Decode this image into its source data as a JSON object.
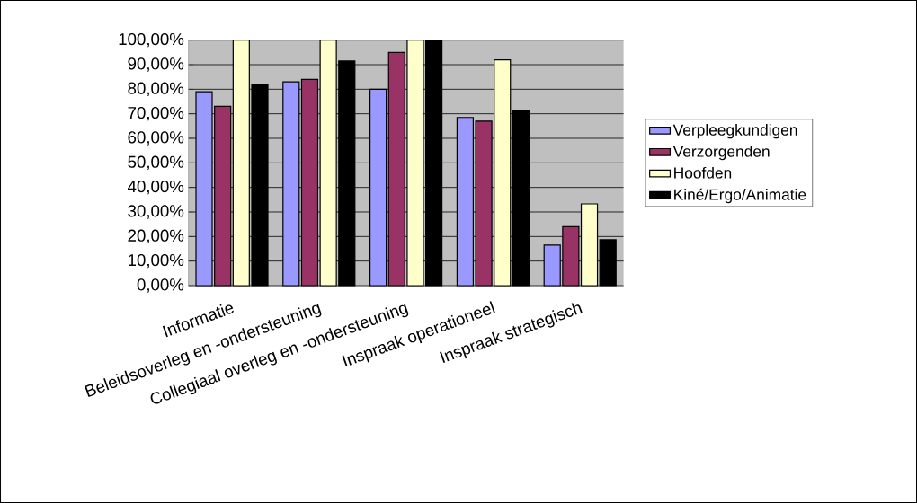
{
  "chart_data": {
    "type": "bar",
    "categories": [
      "Informatie",
      "Beleidsoverleg en -ondersteuning",
      "Collegiaal overleg en -ondersteuning",
      "Inspraak operationeel",
      "Inspraak strategisch"
    ],
    "series": [
      {
        "name": "Verpleegkundigen",
        "color": "#9999ff",
        "values": [
          79,
          83,
          80,
          68.5,
          16.5
        ]
      },
      {
        "name": "Verzorgenden",
        "color": "#993366",
        "values": [
          73,
          84,
          95,
          67,
          24
        ]
      },
      {
        "name": "Hoofden",
        "color": "#ffffcc",
        "values": [
          100,
          100,
          100,
          92,
          33.3
        ]
      },
      {
        "name": "Kiné/Ergo/Animatie",
        "color": "#000000",
        "values": [
          82,
          91.5,
          100,
          71.5,
          18.7
        ]
      }
    ],
    "ylim": [
      0,
      100
    ],
    "yticks": [
      {
        "value": 0,
        "label": "0,00%"
      },
      {
        "value": 10,
        "label": "10,00%"
      },
      {
        "value": 20,
        "label": "20,00%"
      },
      {
        "value": 30,
        "label": "30,00%"
      },
      {
        "value": 40,
        "label": "40,00%"
      },
      {
        "value": 50,
        "label": "50,00%"
      },
      {
        "value": 60,
        "label": "60,00%"
      },
      {
        "value": 70,
        "label": "70,00%"
      },
      {
        "value": 80,
        "label": "80,00%"
      },
      {
        "value": 90,
        "label": "90,00%"
      },
      {
        "value": 100,
        "label": "100,00%"
      }
    ],
    "grid": "y",
    "legend": "right"
  }
}
